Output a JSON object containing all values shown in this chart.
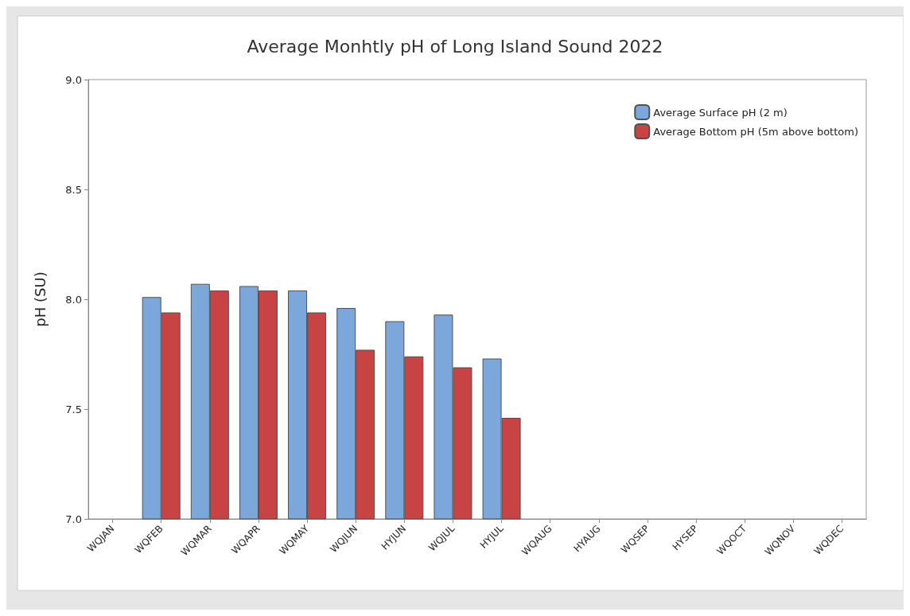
{
  "chart_data": {
    "type": "bar",
    "title": "Average Monhtly pH of Long Island Sound 2022",
    "ylabel": "pH (SU)",
    "categories": [
      "WQJAN",
      "WQFEB",
      "WQMAR",
      "WQAPR",
      "WQMAY",
      "WQJUN",
      "HYJUN",
      "WQJUL",
      "HYJUL",
      "WQAUG",
      "HYAUG",
      "WQSEP",
      "HYSEP",
      "WQOCT",
      "WQNOV",
      "WQDEC"
    ],
    "series": [
      {
        "name": "Average Surface pH (2 m)",
        "color": "#7ba7db",
        "values": [
          null,
          8.01,
          8.07,
          8.06,
          8.04,
          7.96,
          7.9,
          7.93,
          7.73,
          null,
          null,
          null,
          null,
          null,
          null,
          null
        ]
      },
      {
        "name": "Average Bottom pH (5m above bottom)",
        "color": "#c84444",
        "values": [
          null,
          7.94,
          8.04,
          8.04,
          7.94,
          7.77,
          7.74,
          7.69,
          7.46,
          null,
          null,
          null,
          null,
          null,
          null,
          null
        ]
      }
    ],
    "ylim": [
      7.0,
      9.0
    ],
    "yticks": [
      {
        "value": 7.0,
        "label": "7.0"
      },
      {
        "value": 7.5,
        "label": "7.5"
      },
      {
        "value": 8.0,
        "label": "8.0"
      },
      {
        "value": 8.5,
        "label": "8.5"
      },
      {
        "value": 9.0,
        "label": "9.0"
      }
    ],
    "grid": false,
    "legend": "top right"
  }
}
